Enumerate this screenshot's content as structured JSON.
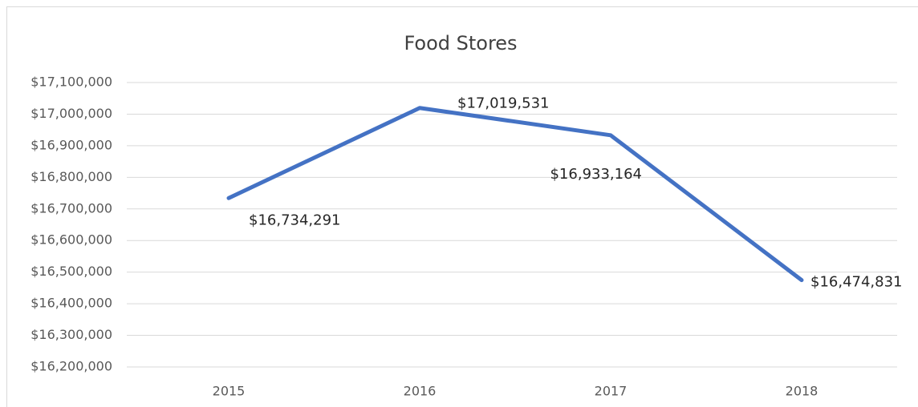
{
  "chart_data": {
    "type": "line",
    "title": "Food Stores",
    "categories": [
      "2015",
      "2016",
      "2017",
      "2018"
    ],
    "series": [
      {
        "name": "Food Stores",
        "color": "#4472c4",
        "values": [
          16734291,
          17019531,
          16933164,
          16474831
        ],
        "value_labels": [
          "$16,734,291",
          "$17,019,531",
          "$16,933,164",
          "$16,474,831"
        ]
      }
    ],
    "ylim": [
      16200000,
      17100000
    ],
    "yticks": [
      {
        "value": 16200000,
        "label": "$16,200,000"
      },
      {
        "value": 16300000,
        "label": "$16,300,000"
      },
      {
        "value": 16400000,
        "label": "$16,400,000"
      },
      {
        "value": 16500000,
        "label": "$16,500,000"
      },
      {
        "value": 16600000,
        "label": "$16,600,000"
      },
      {
        "value": 16700000,
        "label": "$16,700,000"
      },
      {
        "value": 16800000,
        "label": "$16,800,000"
      },
      {
        "value": 16900000,
        "label": "$16,900,000"
      },
      {
        "value": 17000000,
        "label": "$17,000,000"
      },
      {
        "value": 17100000,
        "label": "$17,100,000"
      }
    ],
    "grid": true
  }
}
